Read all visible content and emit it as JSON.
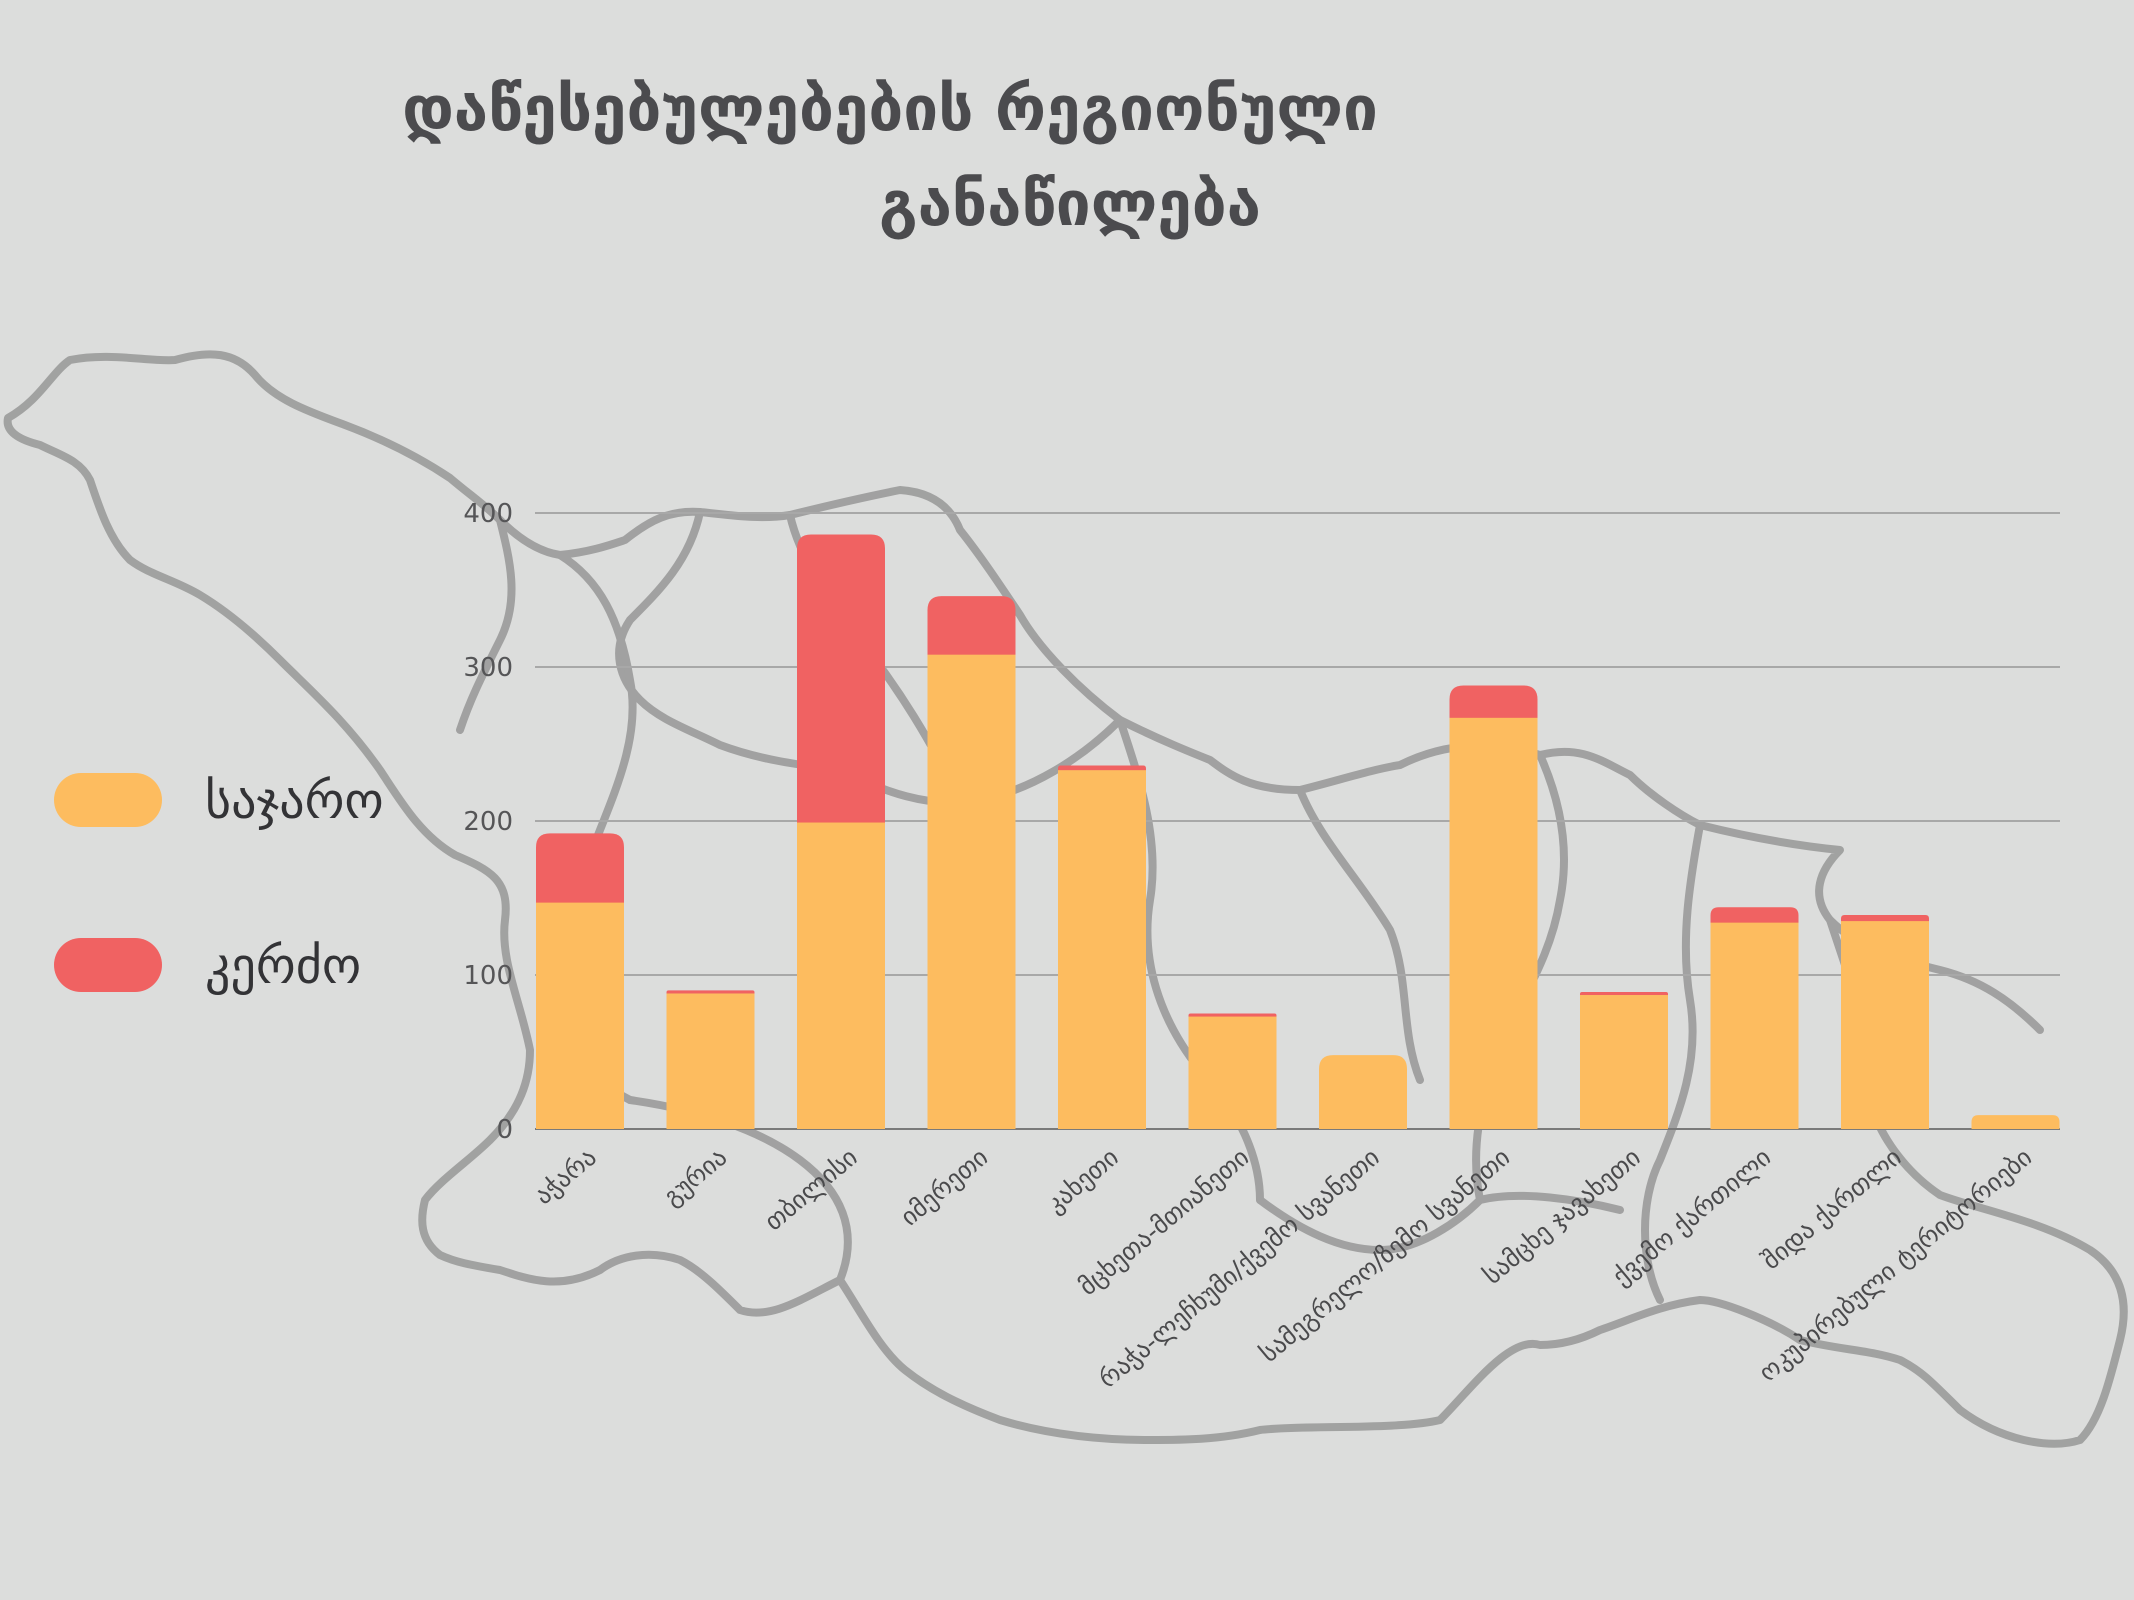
{
  "colors": {
    "background": "#dcdddc",
    "public": "#fdbc5f",
    "private": "#f06262",
    "map_outline": "#8e8e8e",
    "gridline": "#a8a8a8",
    "text": "#4b4b4e"
  },
  "chart_data": {
    "type": "bar",
    "stacked": true,
    "title": "დაწესებულებების რეგიონული განაწილება",
    "title_lines": [
      "დაწესებულებების რეგიონული",
      "განაწილება"
    ],
    "xlabel": "",
    "ylabel": "",
    "ylim": [
      0,
      400
    ],
    "yticks": [
      0,
      100,
      200,
      300,
      400
    ],
    "grid": true,
    "legend_position": "left",
    "categories": [
      "აჭარა",
      "გურია",
      "თბილისი",
      "იმერეთი",
      "კახეთი",
      "მცხეთა-მთიანეთი",
      "რაჭა-ლეჩხუმი/ქვემო სვანეთი",
      "სამეგრელო/ზემო სვანეთი",
      "სამცხე ჯავახეთი",
      "ქვემო ქართილი",
      "შიდა ქართლი",
      "ოკუპირებული ტერიტორიები"
    ],
    "series": [
      {
        "name": "საჯარო",
        "color": "#fdbc5f",
        "values": [
          147,
          88,
          199,
          308,
          233,
          73,
          48,
          267,
          87,
          134,
          135,
          9
        ]
      },
      {
        "name": "კერძო",
        "color": "#f06262",
        "values": [
          45,
          2,
          187,
          38,
          3,
          2,
          0,
          21,
          2,
          10,
          4,
          0
        ]
      }
    ]
  }
}
